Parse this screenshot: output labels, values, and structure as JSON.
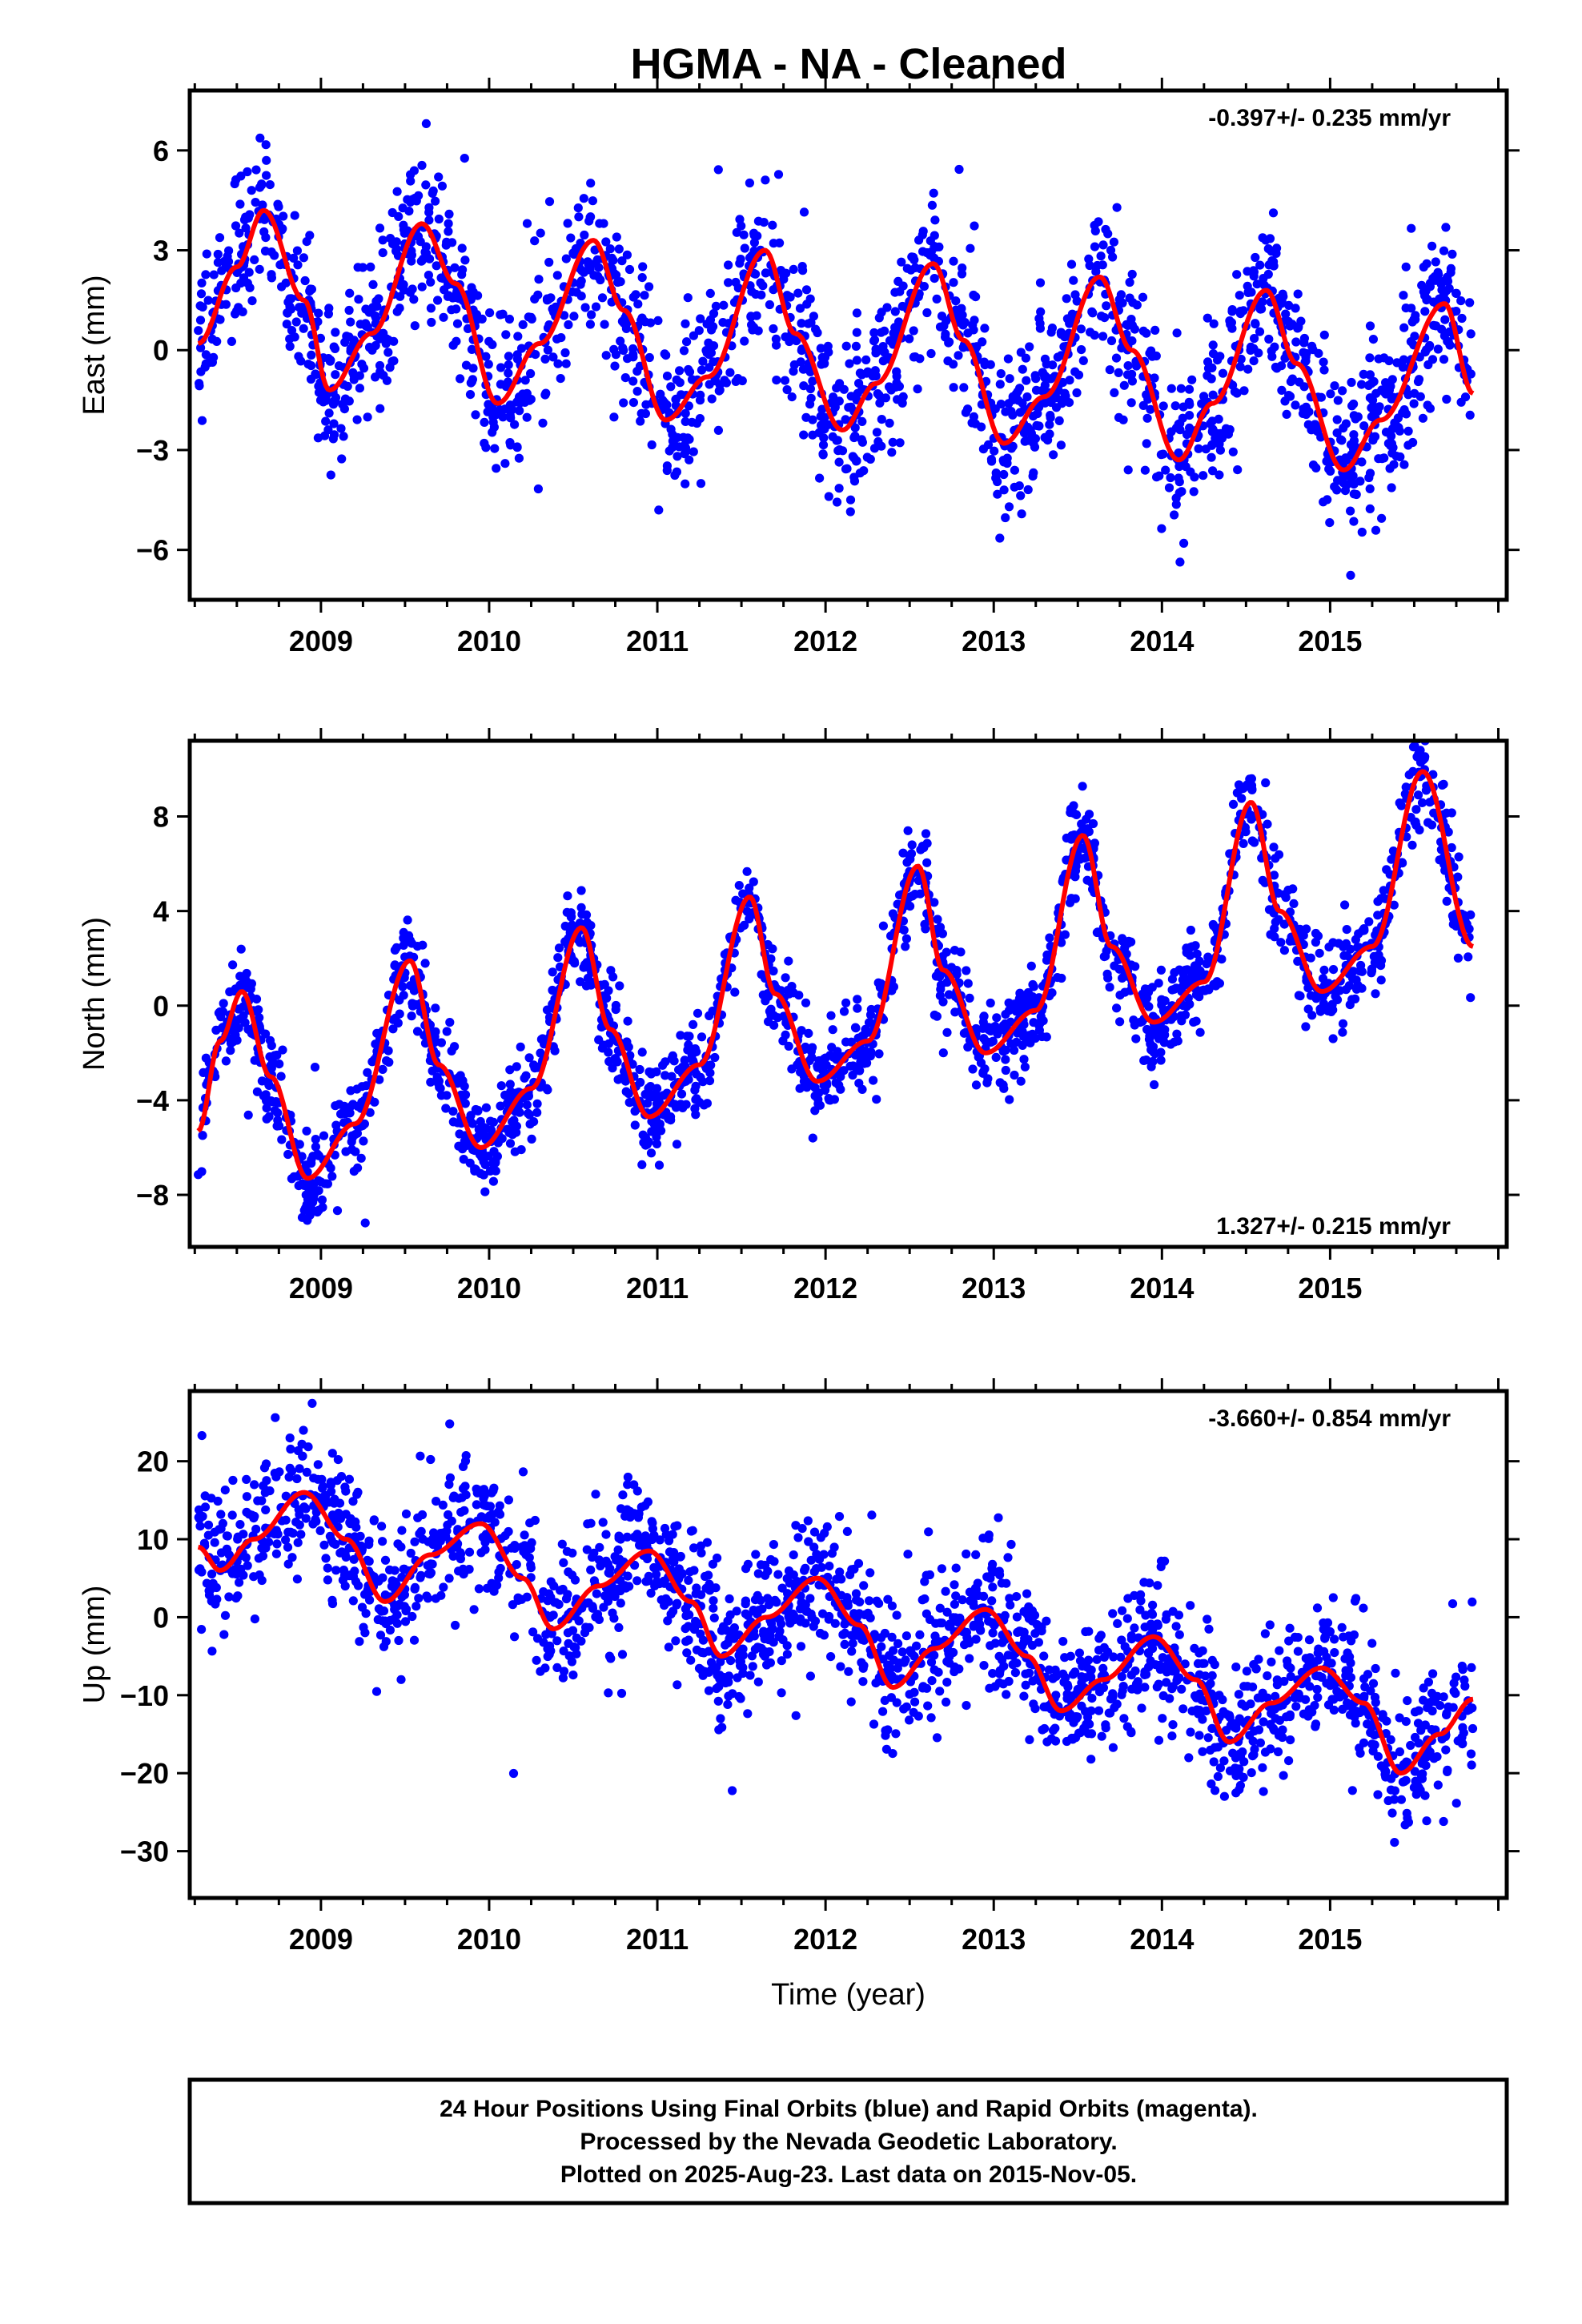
{
  "title": "HGMA  - NA - Cleaned",
  "colors": {
    "points": "#0000ff",
    "fit": "#ff0000",
    "axes": "#000000"
  },
  "footer": {
    "line1": "24 Hour Positions Using Final Orbits (blue) and Rapid Orbits (magenta).",
    "line2": "Processed by the Nevada Geodetic Laboratory.",
    "line3": "Plotted on 2025-Aug-23. Last data on 2015-Nov-05."
  },
  "chart_data": [
    {
      "type": "scatter",
      "ylabel": "East (mm)",
      "xlabel": "",
      "rate_label": "-0.397+/- 0.235 mm/yr",
      "rate_position": "top-right",
      "xlim": [
        2008.22,
        2016.05
      ],
      "ylim": [
        -7.5,
        7.8
      ],
      "x_ticks": [
        2009,
        2010,
        2011,
        2012,
        2013,
        2014,
        2015
      ],
      "y_ticks": [
        -6,
        -3,
        0,
        3,
        6
      ],
      "data_range": [
        2008.27,
        2015.85
      ],
      "series": [
        {
          "style": "line",
          "x": [
            2008.27,
            2008.5,
            2008.66,
            2008.9,
            2009.05,
            2009.3,
            2009.6,
            2009.8,
            2010.05,
            2010.3,
            2010.62,
            2010.8,
            2011.05,
            2011.3,
            2011.64,
            2011.82,
            2012.1,
            2012.3,
            2012.64,
            2012.82,
            2013.06,
            2013.3,
            2013.63,
            2013.82,
            2014.1,
            2014.3,
            2014.62,
            2014.8,
            2015.08,
            2015.3,
            2015.68,
            2015.85
          ],
          "y": [
            0.2,
            2.5,
            4.2,
            1.5,
            -1.2,
            0.5,
            3.8,
            2.0,
            -1.6,
            0.2,
            3.3,
            1.2,
            -2.1,
            -0.8,
            3.0,
            0.5,
            -2.4,
            -1.0,
            2.6,
            0.3,
            -2.8,
            -1.4,
            2.2,
            0.0,
            -3.3,
            -1.6,
            1.8,
            -0.4,
            -3.6,
            -2.1,
            1.4,
            -1.3
          ]
        },
        {
          "style": "points",
          "base_x": [
            2008.27,
            2008.5,
            2008.66,
            2008.9,
            2009.05,
            2009.3,
            2009.6,
            2009.8,
            2010.05,
            2010.3,
            2010.62,
            2010.8,
            2011.05,
            2011.3,
            2011.64,
            2011.82,
            2012.1,
            2012.3,
            2012.64,
            2012.82,
            2013.06,
            2013.3,
            2013.63,
            2013.82,
            2014.1,
            2014.3,
            2014.62,
            2014.8,
            2015.08,
            2015.3,
            2015.68,
            2015.85
          ],
          "base_y": [
            0.2,
            2.5,
            4.2,
            1.5,
            -1.2,
            0.5,
            3.8,
            2.0,
            -1.6,
            0.2,
            3.3,
            1.2,
            -2.1,
            -0.8,
            3.0,
            0.5,
            -2.4,
            -1.0,
            2.6,
            0.3,
            -2.8,
            -1.4,
            2.2,
            0.0,
            -3.3,
            -1.6,
            1.8,
            -0.4,
            -3.6,
            -2.1,
            1.4,
            -1.3
          ],
          "scatter_sd_mm": 1.2,
          "approx_count": 2000
        }
      ]
    },
    {
      "type": "scatter",
      "ylabel": "North (mm)",
      "xlabel": "",
      "rate_label": "1.327+/- 0.215 mm/yr",
      "rate_position": "bottom-right",
      "xlim": [
        2008.22,
        2016.05
      ],
      "ylim": [
        -10.2,
        11.2
      ],
      "x_ticks": [
        2009,
        2010,
        2011,
        2012,
        2013,
        2014,
        2015
      ],
      "y_ticks": [
        -8,
        -4,
        0,
        4,
        8
      ],
      "data_range": [
        2008.27,
        2015.85
      ],
      "series": [
        {
          "style": "line",
          "x": [
            2008.27,
            2008.4,
            2008.53,
            2008.7,
            2008.92,
            2009.2,
            2009.53,
            2009.7,
            2009.95,
            2010.25,
            2010.55,
            2010.72,
            2010.95,
            2011.25,
            2011.55,
            2011.7,
            2011.95,
            2012.25,
            2012.55,
            2012.7,
            2012.95,
            2013.25,
            2013.53,
            2013.7,
            2013.95,
            2014.25,
            2014.53,
            2014.7,
            2014.95,
            2015.25,
            2015.55,
            2015.85
          ],
          "y": [
            -5.3,
            -1.5,
            0.6,
            -3.0,
            -7.3,
            -5.0,
            1.9,
            -2.5,
            -6.0,
            -3.5,
            3.3,
            -1.0,
            -4.7,
            -2.5,
            4.6,
            0.5,
            -3.2,
            -1.5,
            5.9,
            1.5,
            -2.0,
            -0.2,
            7.2,
            2.5,
            -0.7,
            1.0,
            8.6,
            4.0,
            0.6,
            2.5,
            9.9,
            2.5
          ]
        },
        {
          "style": "points",
          "base_x": [
            2008.27,
            2008.4,
            2008.53,
            2008.7,
            2008.92,
            2009.2,
            2009.53,
            2009.7,
            2009.95,
            2010.25,
            2010.55,
            2010.72,
            2010.95,
            2011.25,
            2011.55,
            2011.7,
            2011.95,
            2012.25,
            2012.55,
            2012.7,
            2012.95,
            2013.25,
            2013.53,
            2013.7,
            2013.95,
            2014.25,
            2014.53,
            2014.7,
            2014.95,
            2015.25,
            2015.55,
            2015.85
          ],
          "base_y": [
            -5.3,
            -1.5,
            0.6,
            -3.0,
            -7.3,
            -5.0,
            1.9,
            -2.5,
            -6.0,
            -3.5,
            3.3,
            -1.0,
            -4.7,
            -2.5,
            4.6,
            0.5,
            -3.2,
            -1.5,
            5.9,
            1.5,
            -2.0,
            -0.2,
            7.2,
            2.5,
            -0.7,
            1.0,
            8.6,
            4.0,
            0.6,
            2.5,
            9.9,
            2.5
          ],
          "scatter_sd_mm": 1.0,
          "approx_count": 2000
        }
      ]
    },
    {
      "type": "scatter",
      "ylabel": "Up (mm)",
      "xlabel": "Time (year)",
      "rate_label": "-3.660+/- 0.854 mm/yr",
      "rate_position": "top-right",
      "xlim": [
        2008.22,
        2016.05
      ],
      "ylim": [
        -36,
        29
      ],
      "x_ticks": [
        2009,
        2010,
        2011,
        2012,
        2013,
        2014,
        2015
      ],
      "y_ticks": [
        -30,
        -20,
        -10,
        0,
        10,
        20
      ],
      "data_range": [
        2008.27,
        2015.85
      ],
      "series": [
        {
          "style": "line",
          "x": [
            2008.27,
            2008.4,
            2008.6,
            2008.9,
            2009.15,
            2009.38,
            2009.65,
            2009.95,
            2010.2,
            2010.38,
            2010.65,
            2010.95,
            2011.2,
            2011.38,
            2011.65,
            2011.95,
            2012.2,
            2012.4,
            2012.65,
            2012.95,
            2013.2,
            2013.4,
            2013.65,
            2013.95,
            2014.2,
            2014.4,
            2014.65,
            2014.95,
            2015.2,
            2015.42,
            2015.65,
            2015.85
          ],
          "y": [
            9.0,
            6.0,
            10.0,
            16.0,
            10.0,
            2.0,
            8.0,
            12.0,
            5.0,
            -1.5,
            4.0,
            8.5,
            2.0,
            -5.0,
            0.0,
            5.0,
            -1.0,
            -9.0,
            -4.0,
            1.0,
            -5.0,
            -12.0,
            -8.0,
            -2.5,
            -8.0,
            -16.0,
            -11.0,
            -6.5,
            -11.0,
            -20.0,
            -15.0,
            -10.5
          ]
        },
        {
          "style": "points",
          "base_x": [
            2008.27,
            2008.4,
            2008.6,
            2008.9,
            2009.15,
            2009.38,
            2009.65,
            2009.95,
            2010.2,
            2010.38,
            2010.65,
            2010.95,
            2011.2,
            2011.38,
            2011.65,
            2011.95,
            2012.2,
            2012.4,
            2012.65,
            2012.95,
            2013.2,
            2013.4,
            2013.65,
            2013.95,
            2014.2,
            2014.4,
            2014.65,
            2014.95,
            2015.2,
            2015.42,
            2015.65,
            2015.85
          ],
          "base_y": [
            9.0,
            6.0,
            10.0,
            16.0,
            10.0,
            2.0,
            8.0,
            12.0,
            5.0,
            -1.5,
            4.0,
            8.5,
            2.0,
            -5.0,
            0.0,
            5.0,
            -1.0,
            -9.0,
            -4.0,
            1.0,
            -5.0,
            -12.0,
            -8.0,
            -2.5,
            -8.0,
            -16.0,
            -11.0,
            -6.5,
            -11.0,
            -20.0,
            -15.0,
            -10.5
          ],
          "scatter_sd_mm": 4.5,
          "approx_count": 2000
        }
      ]
    }
  ]
}
